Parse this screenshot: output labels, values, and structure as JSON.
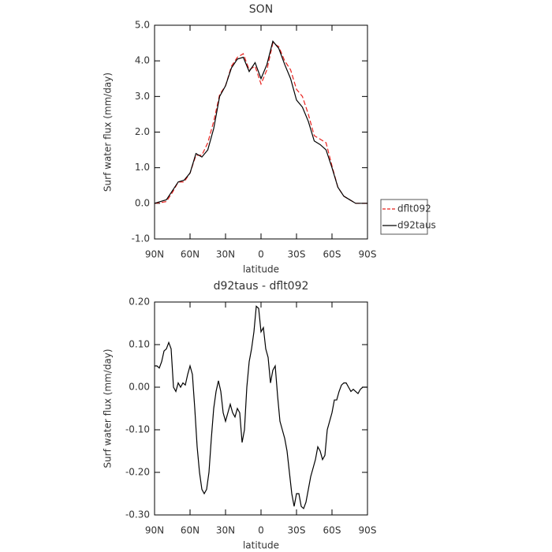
{
  "chart_data": [
    {
      "type": "line",
      "title": "SON",
      "xlabel": "latitude",
      "ylabel": "Surf water flux (mm/day)",
      "x": [
        90,
        85,
        80,
        75,
        70,
        65,
        60,
        55,
        50,
        45,
        40,
        35,
        30,
        25,
        20,
        15,
        10,
        5,
        0,
        -5,
        -10,
        -15,
        -20,
        -25,
        -30,
        -35,
        -40,
        -45,
        -50,
        -55,
        -60,
        -65,
        -70,
        -75,
        -80,
        -85,
        -90
      ],
      "series": [
        {
          "name": "dflt092",
          "color": "#e8231f",
          "line_style": "dashed",
          "values": [
            0.0,
            0.02,
            0.05,
            0.3,
            0.6,
            0.6,
            0.85,
            1.35,
            1.35,
            1.7,
            2.3,
            3.05,
            3.3,
            3.85,
            4.1,
            4.2,
            3.75,
            3.85,
            3.35,
            3.75,
            4.5,
            4.4,
            4.0,
            3.75,
            3.2,
            3.0,
            2.5,
            1.9,
            1.8,
            1.7,
            1.05,
            0.45,
            0.2,
            0.1,
            0.0,
            0.0,
            0.0
          ]
        },
        {
          "name": "d92taus",
          "color": "#000000",
          "line_style": "solid",
          "values": [
            0.0,
            0.05,
            0.1,
            0.35,
            0.6,
            0.65,
            0.85,
            1.4,
            1.3,
            1.5,
            2.1,
            3.0,
            3.3,
            3.8,
            4.05,
            4.1,
            3.7,
            3.95,
            3.5,
            3.9,
            4.55,
            4.35,
            3.9,
            3.5,
            2.9,
            2.7,
            2.3,
            1.75,
            1.65,
            1.5,
            1.0,
            0.45,
            0.2,
            0.1,
            0.0,
            0.0,
            0.0
          ]
        }
      ],
      "xlim": [
        90,
        -90
      ],
      "xticks": [
        {
          "value": 90,
          "label": "90N"
        },
        {
          "value": 60,
          "label": "60N"
        },
        {
          "value": 30,
          "label": "30N"
        },
        0,
        {
          "value": -30,
          "label": "30S"
        },
        {
          "value": -60,
          "label": "60S"
        },
        {
          "value": -90,
          "label": "90S"
        }
      ],
      "ylim": [
        -1,
        5
      ],
      "yticks": [
        {
          "value": -1,
          "label": "-1.0"
        },
        {
          "value": 0,
          "label": "0.0"
        },
        {
          "value": 1,
          "label": "1.0"
        },
        {
          "value": 2,
          "label": "2.0"
        },
        {
          "value": 3,
          "label": "3.0"
        },
        {
          "value": 4,
          "label": "4.0"
        },
        {
          "value": 5,
          "label": "5.0"
        }
      ],
      "legend": "right"
    },
    {
      "type": "line",
      "title": "d92taus - dflt092",
      "xlabel": "latitude",
      "ylabel": "Surf water flux (mm/day)",
      "x": [
        90,
        88,
        86,
        84,
        82,
        80,
        78,
        76,
        74,
        72,
        70,
        68,
        66,
        64,
        62,
        60,
        58,
        56,
        54,
        52,
        50,
        48,
        46,
        44,
        42,
        40,
        38,
        36,
        34,
        32,
        30,
        28,
        26,
        24,
        22,
        20,
        18,
        16,
        14,
        12,
        10,
        8,
        6,
        4,
        2,
        0,
        -2,
        -4,
        -6,
        -8,
        -10,
        -12,
        -14,
        -16,
        -18,
        -20,
        -22,
        -24,
        -26,
        -28,
        -30,
        -32,
        -34,
        -36,
        -38,
        -40,
        -42,
        -44,
        -46,
        -48,
        -50,
        -52,
        -54,
        -56,
        -58,
        -60,
        -62,
        -64,
        -66,
        -68,
        -70,
        -72,
        -74,
        -76,
        -78,
        -80,
        -82,
        -84,
        -86,
        -88,
        -90
      ],
      "series": [
        {
          "name": "d92taus - dflt092",
          "color": "#000000",
          "line_style": "solid",
          "values": [
            0.05,
            0.05,
            0.045,
            0.06,
            0.085,
            0.09,
            0.105,
            0.09,
            0.0,
            -0.01,
            0.01,
            0.0,
            0.01,
            0.005,
            0.03,
            0.05,
            0.03,
            -0.05,
            -0.14,
            -0.2,
            -0.24,
            -0.25,
            -0.24,
            -0.2,
            -0.12,
            -0.05,
            -0.01,
            0.015,
            -0.01,
            -0.06,
            -0.08,
            -0.06,
            -0.04,
            -0.06,
            -0.07,
            -0.05,
            -0.06,
            -0.13,
            -0.1,
            0.0,
            0.06,
            0.09,
            0.13,
            0.19,
            0.185,
            0.13,
            0.14,
            0.09,
            0.07,
            0.01,
            0.04,
            0.05,
            -0.02,
            -0.08,
            -0.1,
            -0.12,
            -0.15,
            -0.2,
            -0.25,
            -0.28,
            -0.25,
            -0.25,
            -0.28,
            -0.285,
            -0.27,
            -0.24,
            -0.21,
            -0.19,
            -0.17,
            -0.14,
            -0.15,
            -0.17,
            -0.16,
            -0.1,
            -0.08,
            -0.06,
            -0.03,
            -0.03,
            -0.01,
            0.005,
            0.01,
            0.01,
            0.0,
            -0.01,
            -0.005,
            -0.01,
            -0.015,
            -0.005,
            0.0,
            0.0,
            0.0
          ]
        }
      ],
      "xlim": [
        90,
        -90
      ],
      "xticks": [
        {
          "value": 90,
          "label": "90N"
        },
        {
          "value": 60,
          "label": "60N"
        },
        {
          "value": 30,
          "label": "30N"
        },
        0,
        {
          "value": -30,
          "label": "30S"
        },
        {
          "value": -60,
          "label": "60S"
        },
        {
          "value": -90,
          "label": "90S"
        }
      ],
      "ylim": [
        -0.3,
        0.2
      ],
      "yticks": [
        {
          "value": -0.3,
          "label": "-0.30"
        },
        {
          "value": -0.2,
          "label": "-0.20"
        },
        {
          "value": -0.1,
          "label": "-0.10"
        },
        {
          "value": 0,
          "label": "0.00"
        },
        {
          "value": 0.1,
          "label": "0.10"
        },
        {
          "value": 0.2,
          "label": "0.20"
        }
      ]
    }
  ]
}
